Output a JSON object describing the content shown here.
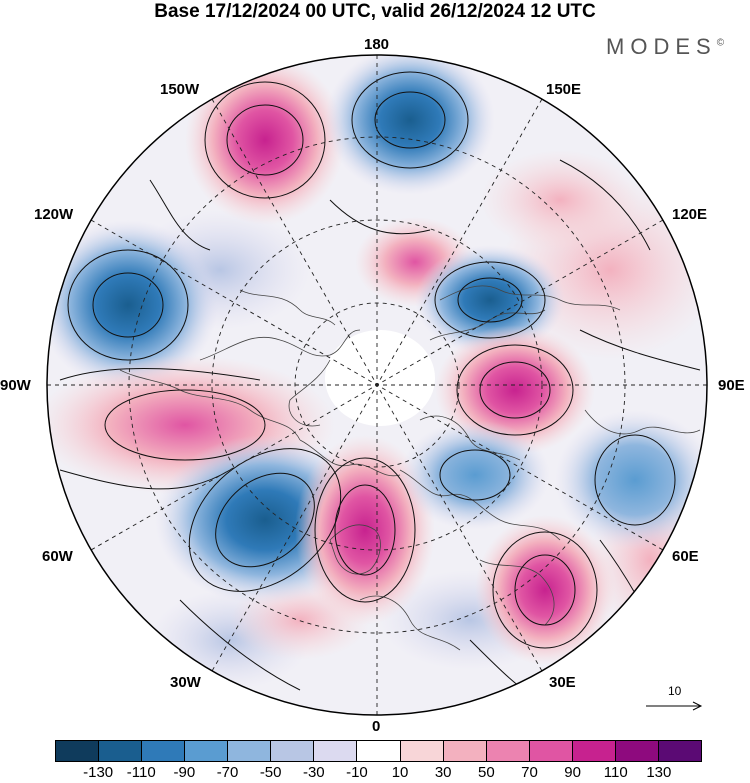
{
  "header": {
    "title": "Base 17/12/2024 00 UTC, valid 26/12/2024 12 UTC",
    "brand": "MODES",
    "brand_mark": "©"
  },
  "map": {
    "projection": "north polar stereographic",
    "longitude_labels": {
      "top": "180",
      "top_left": "150W",
      "top_right": "150E",
      "upper_left": "120W",
      "upper_right": "120E",
      "left": "90W",
      "right": "90E",
      "lower_left": "60W",
      "lower_right": "60E",
      "bottom_left": "30W",
      "bottom_right": "30E",
      "bottom": "0"
    },
    "reference_vector_label": "10",
    "anomaly_centers": [
      {
        "name": "positive",
        "lon": "150W",
        "sign": "+"
      },
      {
        "name": "negative",
        "lon": "170E",
        "sign": "-"
      },
      {
        "name": "negative",
        "lon": "115W",
        "sign": "-"
      },
      {
        "name": "positive",
        "lon": "160E",
        "sign": "+"
      },
      {
        "name": "negative",
        "lon": "130E",
        "sign": "-"
      },
      {
        "name": "positive",
        "lon": "90E",
        "sign": "+"
      },
      {
        "name": "positive",
        "lon": "80W",
        "sign": "+"
      },
      {
        "name": "negative",
        "lon": "70E",
        "sign": "-"
      },
      {
        "name": "negative",
        "lon": "40W",
        "sign": "-"
      },
      {
        "name": "positive",
        "lon": "5W",
        "sign": "+"
      },
      {
        "name": "negative",
        "lon": "40E",
        "sign": "-"
      },
      {
        "name": "positive",
        "lon": "30E",
        "sign": "+"
      }
    ]
  },
  "colorbar": {
    "tick_labels": [
      "-130",
      "-110",
      "-90",
      "-70",
      "-50",
      "-30",
      "-10",
      "10",
      "30",
      "50",
      "70",
      "90",
      "110",
      "130"
    ],
    "colors": [
      "#0f3b5c",
      "#1a5e8f",
      "#2f7ab8",
      "#5a9cd1",
      "#8fb6de",
      "#b8c6e4",
      "#dcdaf0",
      "#ffffff",
      "#f8d6d8",
      "#f3b1bf",
      "#ec83b0",
      "#e055a3",
      "#c7228f",
      "#8e0a7e",
      "#5b0a74"
    ]
  }
}
